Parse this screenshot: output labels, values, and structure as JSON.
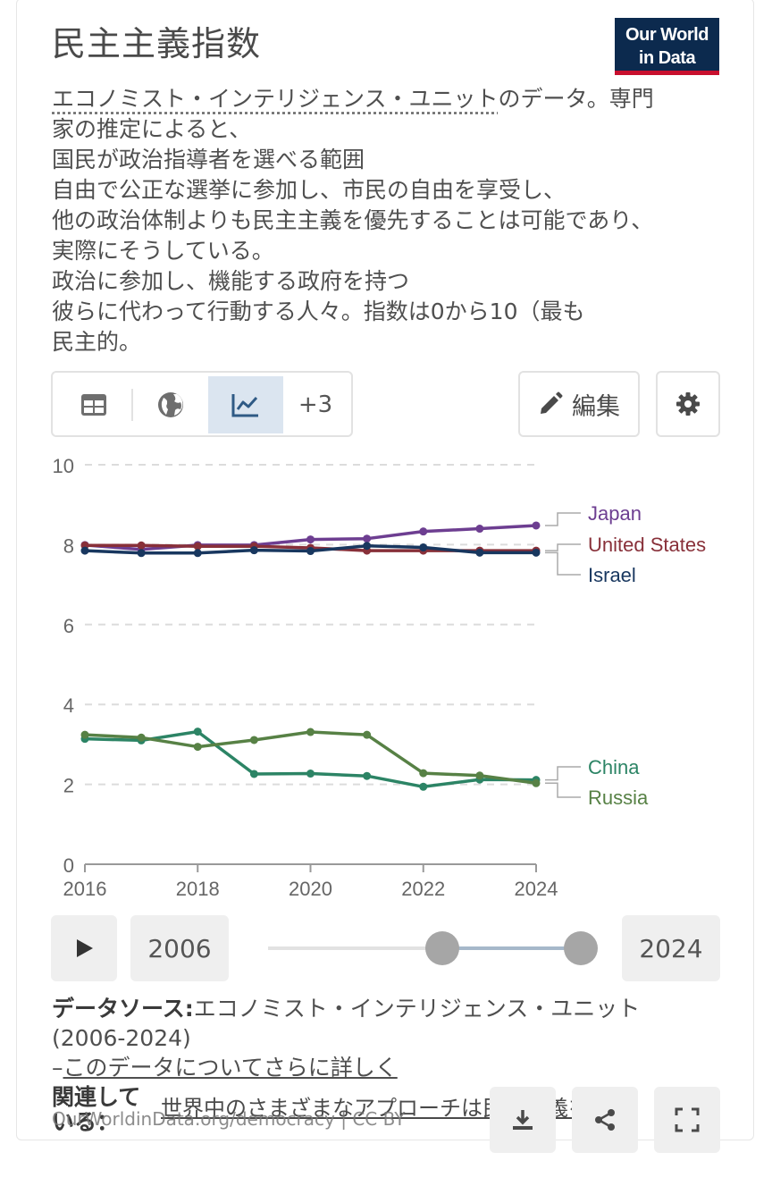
{
  "header": {
    "title": "民主主義指数",
    "logo_line1": "Our World",
    "logo_line2": "in Data"
  },
  "subtitle": {
    "source_link": "エコノミスト・インテリジェンス・ユニット",
    "line1_rest": "のデータ。専門",
    "lines": [
      "家の推定によると、",
      "国民が政治指導者を選べる範囲",
      "自由で公正な選挙に参加し、市民の自由を享受し、",
      "他の政治体制よりも民主主義を優先することは可能であり、",
      "実際にそうしている。",
      "政治に参加し、機能する政府を持つ",
      "彼らに代わって行動する人々。指数は0から10（最も",
      "民主的。"
    ]
  },
  "toolbar": {
    "more_label": "+3",
    "edit_label": "編集"
  },
  "icons": {
    "table": "table-icon",
    "map": "globe-icon",
    "chart": "line-chart-icon",
    "edit": "pencil-icon",
    "settings": "gear-icon",
    "play": "play-icon",
    "download": "download-icon",
    "share": "share-icon",
    "fullscreen": "fullscreen-icon"
  },
  "chart_data": {
    "type": "line",
    "x": [
      2016,
      2017,
      2018,
      2019,
      2020,
      2021,
      2022,
      2023,
      2024
    ],
    "xticks": [
      "2016",
      "2018",
      "2020",
      "2022",
      "2024"
    ],
    "yticks": [
      "0",
      "2",
      "4",
      "6",
      "8",
      "10"
    ],
    "ylim": [
      0,
      10
    ],
    "grid": true,
    "series": [
      {
        "name": "Japan",
        "color": "#6d3e91",
        "values": [
          7.99,
          7.88,
          7.99,
          7.99,
          8.13,
          8.15,
          8.33,
          8.4,
          8.48
        ]
      },
      {
        "name": "United States",
        "color": "#883039",
        "values": [
          7.98,
          7.98,
          7.96,
          7.96,
          7.92,
          7.85,
          7.85,
          7.85,
          7.85
        ]
      },
      {
        "name": "Israel",
        "color": "#18375f",
        "values": [
          7.85,
          7.79,
          7.79,
          7.86,
          7.84,
          7.97,
          7.93,
          7.8,
          7.8
        ]
      },
      {
        "name": "China",
        "color": "#2c8465",
        "values": [
          3.14,
          3.1,
          3.32,
          2.26,
          2.27,
          2.21,
          1.94,
          2.12,
          2.11
        ]
      },
      {
        "name": "Russia",
        "color": "#578145",
        "values": [
          3.24,
          3.17,
          2.94,
          3.11,
          3.31,
          3.24,
          2.28,
          2.22,
          2.03
        ]
      }
    ]
  },
  "timeline": {
    "start_year": "2006",
    "end_year": "2024",
    "range_start_fraction": 0.56,
    "range_end_fraction": 1.0
  },
  "source": {
    "label": "データソース:",
    "name": "エコノミスト・インテリジェンス・ユニット",
    "years": "(2006-2024)",
    "dash": "–",
    "more_link": "このデータについてさらに詳しく"
  },
  "footer": {
    "related_label": "関連している：",
    "related_link": "世界中のさまざまなアプローチは民主主義を…",
    "url_text": "OurWorldinData.org/democracy | CC BY"
  },
  "colors": {
    "accent_active_tab": "#dbe5f0",
    "logo_bg": "#0c2a4e",
    "logo_underline": "#c8102e"
  }
}
